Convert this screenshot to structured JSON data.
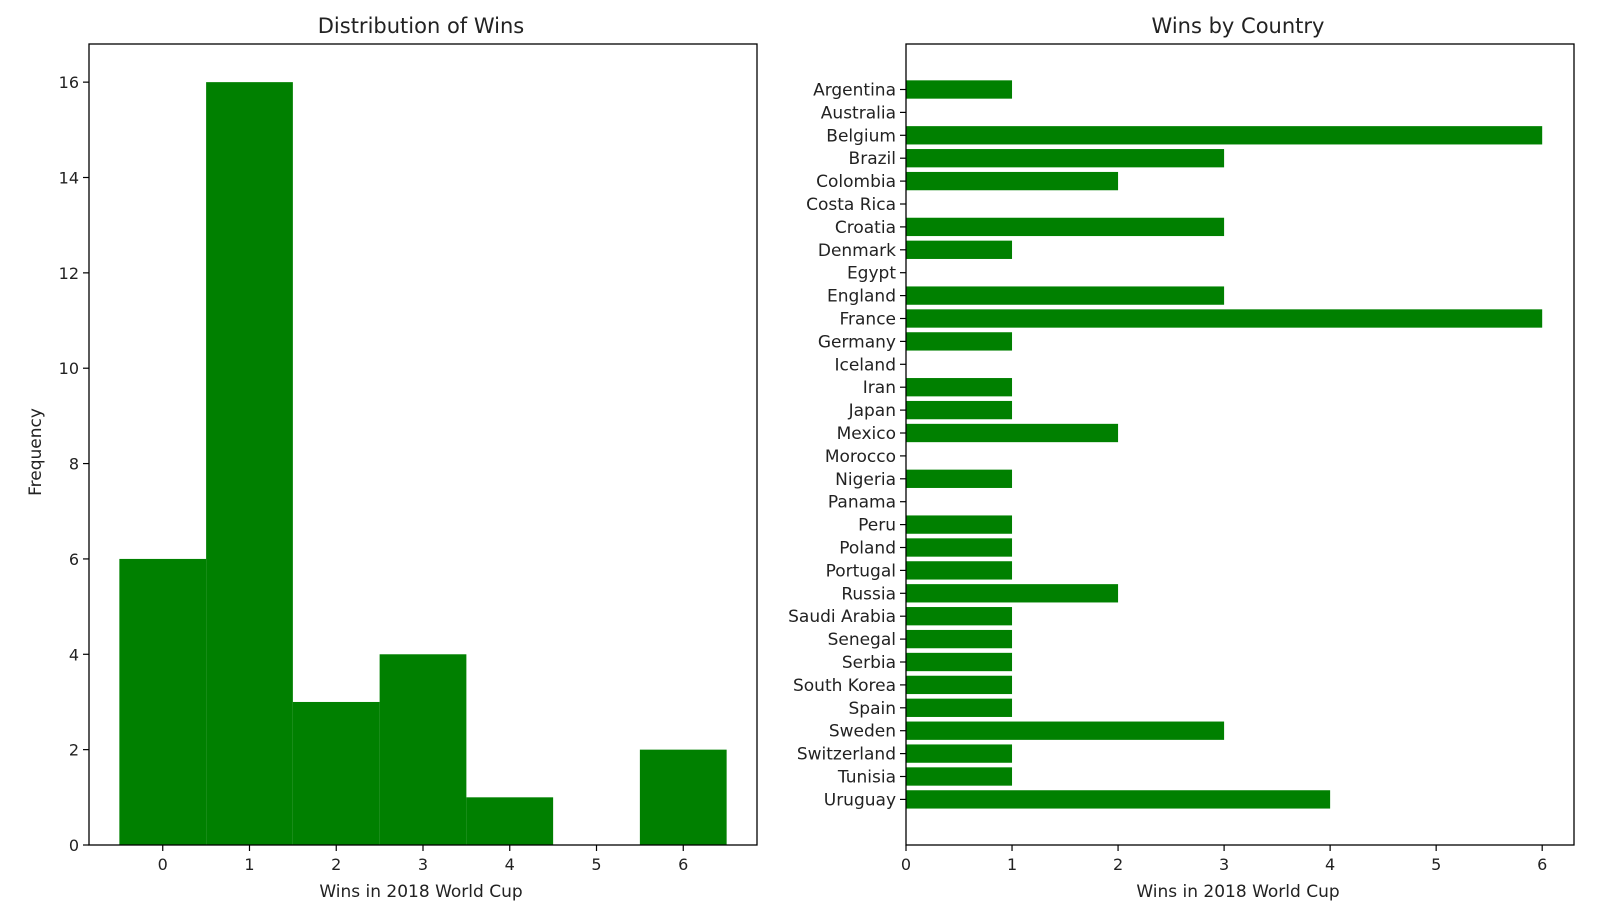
{
  "chart_data": [
    {
      "type": "bar",
      "title": "Distribution of Wins",
      "xlabel": "Wins in 2018 World Cup",
      "ylabel": "Frequency",
      "categories": [
        "0",
        "1",
        "2",
        "3",
        "4",
        "5",
        "6"
      ],
      "values": [
        6,
        16,
        3,
        4,
        1,
        0,
        2
      ],
      "xlim": [
        -0.85,
        6.85
      ],
      "ylim": [
        0,
        16.8
      ],
      "xticks": [
        0,
        1,
        2,
        3,
        4,
        5,
        6
      ],
      "yticks": [
        0,
        2,
        4,
        6,
        8,
        10,
        12,
        14,
        16
      ],
      "grid": false,
      "color": "#008000"
    },
    {
      "type": "bar",
      "orientation": "horizontal",
      "title": "Wins by Country",
      "xlabel": "Wins in 2018 World Cup",
      "ylabel": "",
      "categories": [
        "Argentina",
        "Australia",
        "Belgium",
        "Brazil",
        "Colombia",
        "Costa Rica",
        "Croatia",
        "Denmark",
        "Egypt",
        "England",
        "France",
        "Germany",
        "Iceland",
        "Iran",
        "Japan",
        "Mexico",
        "Morocco",
        "Nigeria",
        "Panama",
        "Peru",
        "Poland",
        "Portugal",
        "Russia",
        "Saudi Arabia",
        "Senegal",
        "Serbia",
        "South Korea",
        "Spain",
        "Sweden",
        "Switzerland",
        "Tunisia",
        "Uruguay"
      ],
      "values": [
        1,
        0,
        6,
        3,
        2,
        0,
        3,
        1,
        0,
        3,
        6,
        1,
        0,
        1,
        1,
        2,
        0,
        1,
        0,
        1,
        1,
        1,
        2,
        1,
        1,
        1,
        1,
        1,
        3,
        1,
        1,
        4
      ],
      "xlim": [
        0,
        6.3
      ],
      "xticks": [
        0,
        1,
        2,
        3,
        4,
        5,
        6
      ],
      "grid": false,
      "color": "#008000"
    }
  ]
}
